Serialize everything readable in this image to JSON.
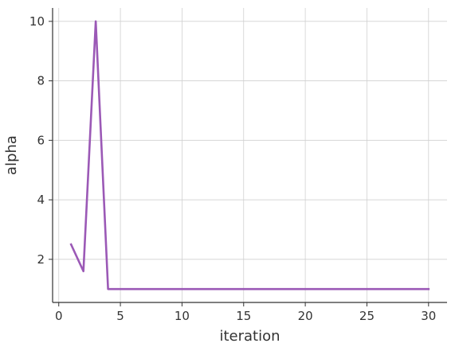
{
  "chart_data": {
    "type": "line",
    "title": "",
    "xlabel": "iteration",
    "ylabel": "alpha",
    "xlim": [
      -0.5,
      31.5
    ],
    "ylim": [
      0.55,
      10.45
    ],
    "xticks": [
      0,
      5,
      10,
      15,
      20,
      25,
      30
    ],
    "yticks": [
      2,
      4,
      6,
      8,
      10
    ],
    "grid": true,
    "series": [
      {
        "color": "#9b59b6",
        "x": [
          1,
          2,
          3,
          4,
          5,
          6,
          7,
          8,
          9,
          10,
          11,
          12,
          13,
          14,
          15,
          16,
          17,
          18,
          19,
          20,
          21,
          22,
          23,
          24,
          25,
          26,
          27,
          28,
          29,
          30
        ],
        "y": [
          2.5,
          1.6,
          10.0,
          1.0,
          1.0,
          1.0,
          1.0,
          1.0,
          1.0,
          1.0,
          1.0,
          1.0,
          1.0,
          1.0,
          1.0,
          1.0,
          1.0,
          1.0,
          1.0,
          1.0,
          1.0,
          1.0,
          1.0,
          1.0,
          1.0,
          1.0,
          1.0,
          1.0,
          1.0,
          1.0
        ]
      }
    ]
  }
}
